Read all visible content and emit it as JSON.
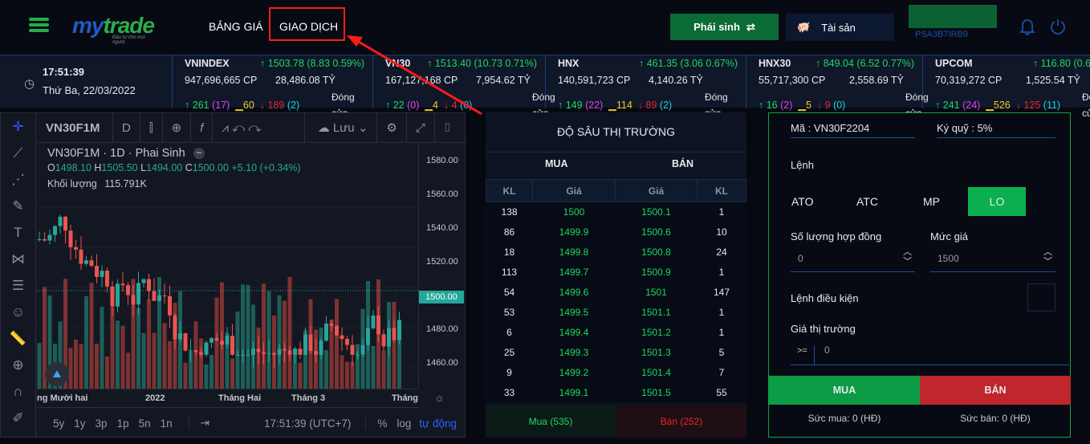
{
  "header": {
    "logo": "mytrade",
    "logo_tagline": "Đầu tư cho mọi người",
    "nav": [
      "BẢNG GIÁ",
      "GIAO DỊCH"
    ],
    "derivative_button": "Phái sinh",
    "assets_button": "Tài sản",
    "account_id": "PSA3B7IRB9"
  },
  "ticker": {
    "time": "17:51:39",
    "date": "Thứ Ba, 22/03/2022",
    "status": "Đóng cửa",
    "indices": [
      {
        "name": "VNINDEX",
        "change": "↑ 1503.78 (8.83 0.59%)",
        "volume": "947,696,665 CP",
        "value": "28,486.08 TỶ",
        "up": "261",
        "ceil": "(17)",
        "same": "60",
        "down": "189",
        "floor": "(2)"
      },
      {
        "name": "VN30",
        "change": "↑ 1513.40 (10.73 0.71%)",
        "volume": "167,127,168 CP",
        "value": "7,954.62 TỶ",
        "up": "22",
        "ceil": "(0)",
        "same": "4",
        "down": "4",
        "floor": "(0)"
      },
      {
        "name": "HNX",
        "change": "↑ 461.35 (3.06 0.67%)",
        "volume": "140,591,723 CP",
        "value": "4,140.26 TỶ",
        "up": "149",
        "ceil": "(22)",
        "same": "114",
        "down": "89",
        "floor": "(2)"
      },
      {
        "name": "HNX30",
        "change": "↑ 849.04 (6.52 0.77%)",
        "volume": "55,717,300 CP",
        "value": "2,558.69 TỶ",
        "up": "16",
        "ceil": "(2)",
        "same": "5",
        "down": "9",
        "floor": "(0)"
      },
      {
        "name": "UPCOM",
        "change": "↑ 116.80 (0.6",
        "volume": "70,319,272 CP",
        "value": "1,525.54 TỶ",
        "up": "241",
        "ceil": "(24)",
        "same": "526",
        "down": "125",
        "floor": "(11)"
      }
    ]
  },
  "chart": {
    "symbol": "VN30F1M",
    "interval": "D",
    "save": "Lưu",
    "title": "VN30F1M · 1D · Phai Sinh",
    "open": "1498.10",
    "high": "1505.50",
    "low": "1494.00",
    "close": "1500.00",
    "change": "+5.10 (+0.34%)",
    "volume_label": "Khối lượng",
    "volume": "115.791K",
    "price_ticks": [
      "1580.00",
      "1560.00",
      "1540.00",
      "1520.00",
      "1500.00",
      "1480.00",
      "1460.00"
    ],
    "last_price": "1500.00",
    "time_ticks": [
      "ng Mười hai",
      "2022",
      "Tháng Hai",
      "Tháng 3",
      "Tháng"
    ],
    "ranges": [
      "5y",
      "1y",
      "3p",
      "1p",
      "5n",
      "1n"
    ],
    "clock": "17:51:39 (UTC+7)",
    "percent": "%",
    "log": "log",
    "auto": "tự động"
  },
  "orderbook": {
    "title": "ĐỘ SÂU THỊ TRƯỜNG",
    "buy": "MUA",
    "sell": "BÁN",
    "cols": [
      "KL",
      "Giá",
      "Giá",
      "KL"
    ],
    "rows": [
      [
        "138",
        "1500",
        "1500.1",
        "1"
      ],
      [
        "86",
        "1499.9",
        "1500.6",
        "10"
      ],
      [
        "18",
        "1499.8",
        "1500.8",
        "24"
      ],
      [
        "113",
        "1499.7",
        "1500.9",
        "1"
      ],
      [
        "54",
        "1499.6",
        "1501",
        "147"
      ],
      [
        "53",
        "1499.5",
        "1501.1",
        "1"
      ],
      [
        "6",
        "1499.4",
        "1501.2",
        "1"
      ],
      [
        "25",
        "1499.3",
        "1501.3",
        "5"
      ],
      [
        "9",
        "1499.2",
        "1501.4",
        "7"
      ],
      [
        "33",
        "1499.1",
        "1501.5",
        "55"
      ]
    ],
    "buy_total": "Mua (535)",
    "sell_total": "Bán (252)"
  },
  "form": {
    "code": "Mã : VN30F2204",
    "margin": "Ký quỹ : 5%",
    "order_label": "Lệnh",
    "types": [
      "ATO",
      "ATC",
      "MP",
      "LO"
    ],
    "selected_type": "LO",
    "qty_label": "Số lượng hợp đồng",
    "qty": "0",
    "price_label": "Mức giá",
    "price": "1500",
    "cond_label": "Lệnh điều kiện",
    "market_label": "Giá thị trường",
    "op": ">=",
    "market_value": "0",
    "buy": "MUA",
    "sell": "BÁN",
    "buy_power": "Sức mua: 0 (HĐ)",
    "sell_power": "Sức bán: 0 (HĐ)"
  }
}
